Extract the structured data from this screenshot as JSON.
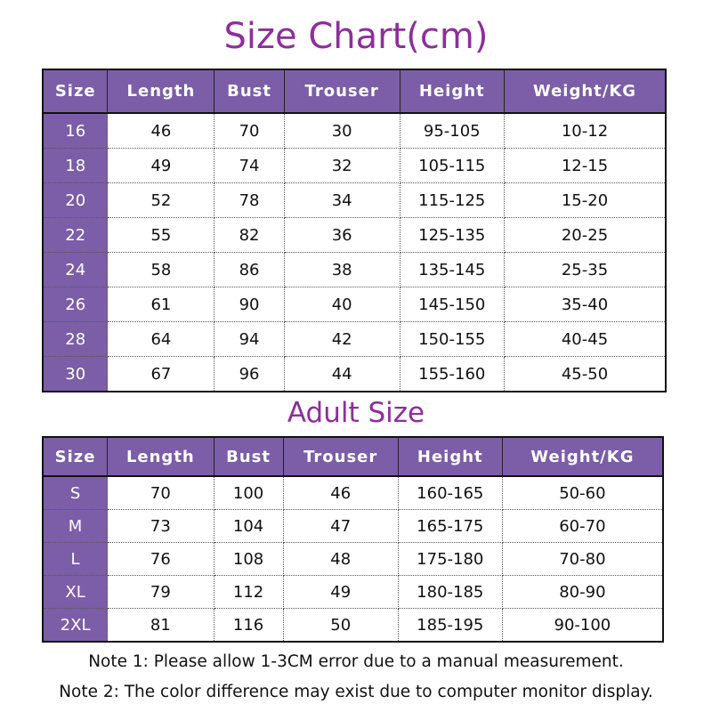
{
  "title": "Size Chart(cm)",
  "headers": [
    "Size",
    "Length",
    "Bust",
    "Trouser",
    "Height",
    "Weight/KG"
  ],
  "kids_rows": [
    [
      "16",
      "46",
      "70",
      "30",
      "95-105",
      "10-12"
    ],
    [
      "18",
      "49",
      "74",
      "32",
      "105-115",
      "12-15"
    ],
    [
      "20",
      "52",
      "78",
      "34",
      "115-125",
      "15-20"
    ],
    [
      "22",
      "55",
      "82",
      "36",
      "125-135",
      "20-25"
    ],
    [
      "24",
      "58",
      "86",
      "38",
      "135-145",
      "25-35"
    ],
    [
      "26",
      "61",
      "90",
      "40",
      "145-150",
      "35-40"
    ],
    [
      "28",
      "64",
      "94",
      "42",
      "150-155",
      "40-45"
    ],
    [
      "30",
      "67",
      "96",
      "44",
      "155-160",
      "45-50"
    ]
  ],
  "adult_title": "Adult Size",
  "adult_rows": [
    [
      "S",
      "70",
      "100",
      "46",
      "160-165",
      "50-60"
    ],
    [
      "M",
      "73",
      "104",
      "47",
      "165-175",
      "60-70"
    ],
    [
      "L",
      "76",
      "108",
      "48",
      "175-180",
      "70-80"
    ],
    [
      "XL",
      "79",
      "112",
      "49",
      "180-185",
      "80-90"
    ],
    [
      "2XL",
      "81",
      "116",
      "50",
      "185-195",
      "90-100"
    ]
  ],
  "notes": [
    "Note 1: Please allow 1-3CM error due to a manual measurement.",
    "Note 2: The color difference may exist due to computer monitor display."
  ],
  "colors": {
    "header_bg": "#7b5ea7",
    "title": "#8e2e9c"
  }
}
